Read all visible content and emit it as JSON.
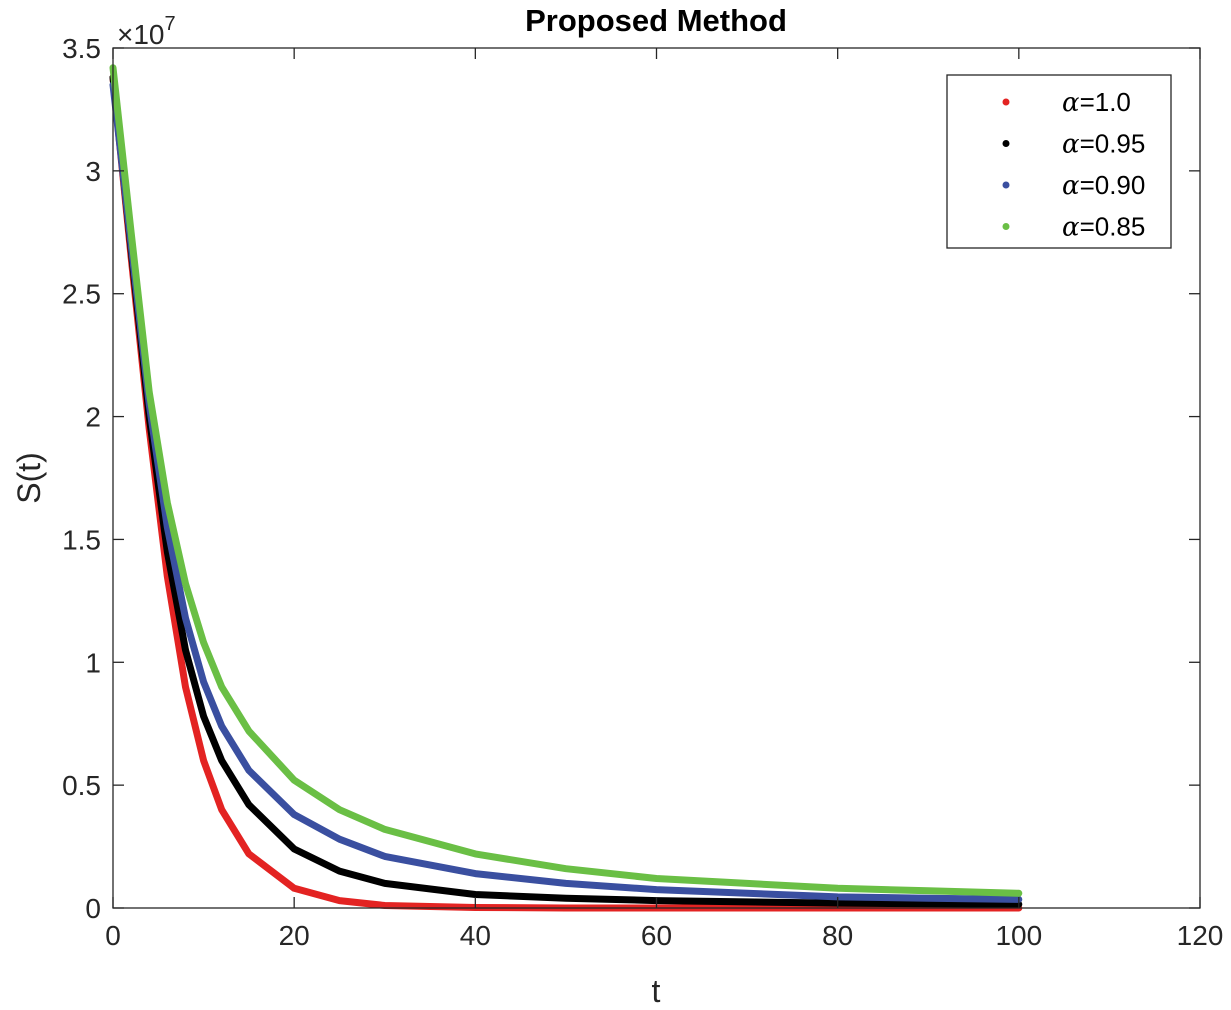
{
  "chart_data": {
    "type": "scatter",
    "title": "Proposed Method",
    "xlabel": "t",
    "ylabel": "S(t)",
    "xlim": [
      0,
      120
    ],
    "ylim": [
      0,
      3.5
    ],
    "y_multiplier": "×10",
    "y_multiplier_exponent": "7",
    "xticks": [
      "0",
      "20",
      "40",
      "60",
      "80",
      "100",
      "120"
    ],
    "yticks": [
      "0",
      "0.5",
      "1",
      "1.5",
      "2",
      "2.5",
      "3",
      "3.5"
    ],
    "grid": false,
    "legend_position": "top-right",
    "series": [
      {
        "name": "α=1.0",
        "name_symbol": "α",
        "name_value": "=1.0",
        "color": "#e32322",
        "x": [
          0,
          2,
          4,
          6,
          8,
          10,
          12,
          15,
          20,
          25,
          30,
          40,
          50,
          60,
          70,
          80,
          90,
          100
        ],
        "y": [
          3.38,
          2.65,
          1.95,
          1.35,
          0.9,
          0.6,
          0.4,
          0.22,
          0.08,
          0.03,
          0.01,
          0.002,
          0.0,
          0.0,
          0.0,
          0.0,
          0.0,
          0.0
        ]
      },
      {
        "name": "α=0.95",
        "name_symbol": "α",
        "name_value": "=0.95",
        "color": "#000000",
        "x": [
          0,
          2,
          4,
          6,
          8,
          10,
          12,
          15,
          20,
          25,
          30,
          40,
          50,
          60,
          70,
          80,
          90,
          100
        ],
        "y": [
          3.38,
          2.68,
          2.0,
          1.45,
          1.05,
          0.78,
          0.6,
          0.42,
          0.24,
          0.15,
          0.1,
          0.055,
          0.04,
          0.03,
          0.025,
          0.02,
          0.017,
          0.015
        ]
      },
      {
        "name": "α=0.90",
        "name_symbol": "α",
        "name_value": "=0.90",
        "color": "#3a4fa0",
        "x": [
          0,
          2,
          4,
          6,
          8,
          10,
          12,
          15,
          20,
          25,
          30,
          40,
          50,
          60,
          70,
          80,
          90,
          100
        ],
        "y": [
          3.35,
          2.7,
          2.05,
          1.55,
          1.18,
          0.92,
          0.74,
          0.56,
          0.38,
          0.28,
          0.21,
          0.14,
          0.1,
          0.075,
          0.06,
          0.045,
          0.04,
          0.035
        ]
      },
      {
        "name": "α=0.85",
        "name_symbol": "α",
        "name_value": "=0.85",
        "color": "#6abf45",
        "x": [
          0,
          2,
          4,
          6,
          8,
          10,
          12,
          15,
          20,
          25,
          30,
          40,
          50,
          60,
          70,
          80,
          90,
          100
        ],
        "y": [
          3.42,
          2.75,
          2.1,
          1.65,
          1.32,
          1.08,
          0.9,
          0.72,
          0.52,
          0.4,
          0.32,
          0.22,
          0.16,
          0.12,
          0.1,
          0.08,
          0.07,
          0.06
        ]
      }
    ]
  }
}
